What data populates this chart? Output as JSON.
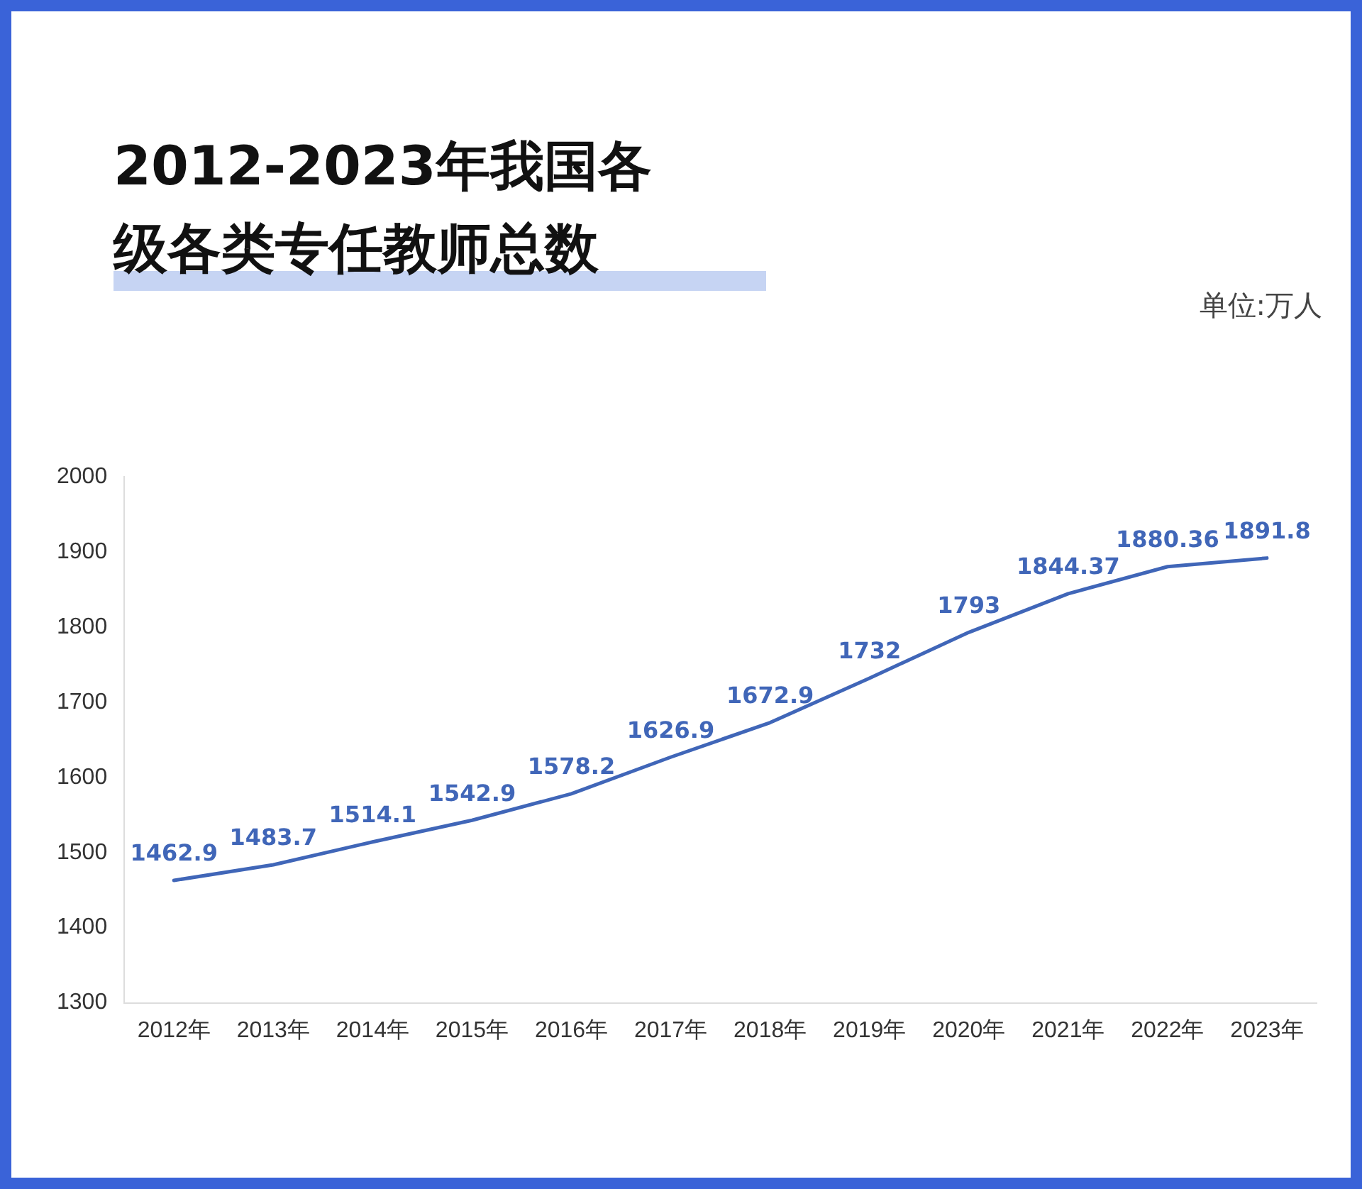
{
  "chart_data": {
    "type": "line",
    "title": "2012-2023年我国各级各类专任教师总数",
    "annotations": [
      "单位:万人"
    ],
    "categories": [
      "2012年",
      "2013年",
      "2014年",
      "2015年",
      "2016年",
      "2017年",
      "2018年",
      "2019年",
      "2020年",
      "2021年",
      "2022年",
      "2023年"
    ],
    "series": [
      {
        "color": "#4066b8",
        "values": [
          1462.9,
          1483.7,
          1514.1,
          1542.9,
          1578.2,
          1626.9,
          1672.9,
          1732,
          1793,
          1844.37,
          1880.36,
          1891.8
        ]
      }
    ],
    "ylim": [
      1300,
      2000
    ],
    "yticks": [
      1300,
      1400,
      1500,
      1600,
      1700,
      1800,
      1900,
      2000
    ],
    "grid": false,
    "legend": false,
    "marker": "none",
    "line_style": "solid",
    "data_labels": true
  }
}
